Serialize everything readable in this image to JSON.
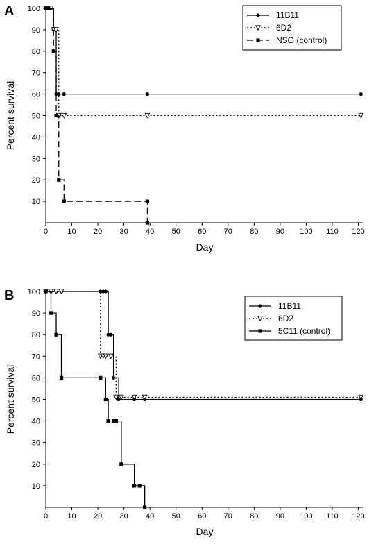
{
  "chart_data": [
    {
      "type": "line",
      "panel_label": "A",
      "xlabel": "Day",
      "ylabel": "Percent survival",
      "xlim": [
        0,
        122
      ],
      "ylim": [
        0,
        100
      ],
      "xticks": [
        0,
        10,
        20,
        30,
        40,
        50,
        60,
        70,
        80,
        90,
        100,
        110,
        120
      ],
      "yticks": [
        10,
        20,
        30,
        40,
        50,
        60,
        70,
        80,
        90,
        100
      ],
      "legend_position": "top-right",
      "grid": false,
      "series": [
        {
          "name": "11B11",
          "style": "solid",
          "marker": "circle",
          "color": "#000000",
          "x": [
            0,
            2,
            3,
            4,
            5,
            7,
            39,
            121
          ],
          "y": [
            100,
            100,
            90,
            60,
            60,
            60,
            60,
            60
          ]
        },
        {
          "name": "6D2",
          "style": "dotted",
          "marker": "triangle-down",
          "color": "#000000",
          "x": [
            0,
            2,
            3,
            4,
            5,
            7,
            39,
            121
          ],
          "y": [
            100,
            100,
            90,
            90,
            50,
            50,
            50,
            50
          ]
        },
        {
          "name": "NSO (control)",
          "style": "dashed",
          "marker": "square",
          "color": "#000000",
          "x": [
            0,
            1,
            3,
            4,
            5,
            7,
            39,
            39
          ],
          "y": [
            100,
            100,
            80,
            50,
            20,
            10,
            10,
            0
          ]
        }
      ]
    },
    {
      "type": "line",
      "panel_label": "B",
      "xlabel": "Day",
      "ylabel": "Percent survival",
      "xlim": [
        0,
        122
      ],
      "ylim": [
        0,
        100
      ],
      "xticks": [
        0,
        10,
        20,
        30,
        40,
        50,
        60,
        70,
        80,
        90,
        100,
        110,
        120
      ],
      "yticks": [
        10,
        20,
        30,
        40,
        50,
        60,
        70,
        80,
        90,
        100
      ],
      "legend_position": "top-right",
      "grid": false,
      "series": [
        {
          "name": "11B11",
          "style": "solid",
          "marker": "circle",
          "color": "#000000",
          "x": [
            0,
            2,
            4,
            6,
            21,
            22,
            23,
            24,
            25,
            26,
            28,
            34,
            38,
            121
          ],
          "y": [
            100,
            100,
            100,
            100,
            100,
            100,
            100,
            80,
            80,
            60,
            50,
            50,
            50,
            50
          ]
        },
        {
          "name": "6D2",
          "style": "dotted",
          "marker": "triangle-down",
          "color": "#000000",
          "x": [
            0,
            2,
            4,
            6,
            21,
            22,
            23,
            25,
            27,
            29,
            34,
            38,
            121
          ],
          "y": [
            100,
            100,
            100,
            100,
            70,
            70,
            70,
            70,
            51,
            51,
            51,
            51,
            51
          ]
        },
        {
          "name": "5C11 (control)",
          "style": "solid",
          "marker": "square",
          "color": "#000000",
          "x": [
            0,
            2,
            4,
            6,
            21,
            23,
            24,
            26,
            27,
            29,
            34,
            36,
            38
          ],
          "y": [
            100,
            90,
            80,
            60,
            60,
            50,
            40,
            40,
            40,
            20,
            10,
            10,
            0
          ]
        }
      ]
    }
  ]
}
